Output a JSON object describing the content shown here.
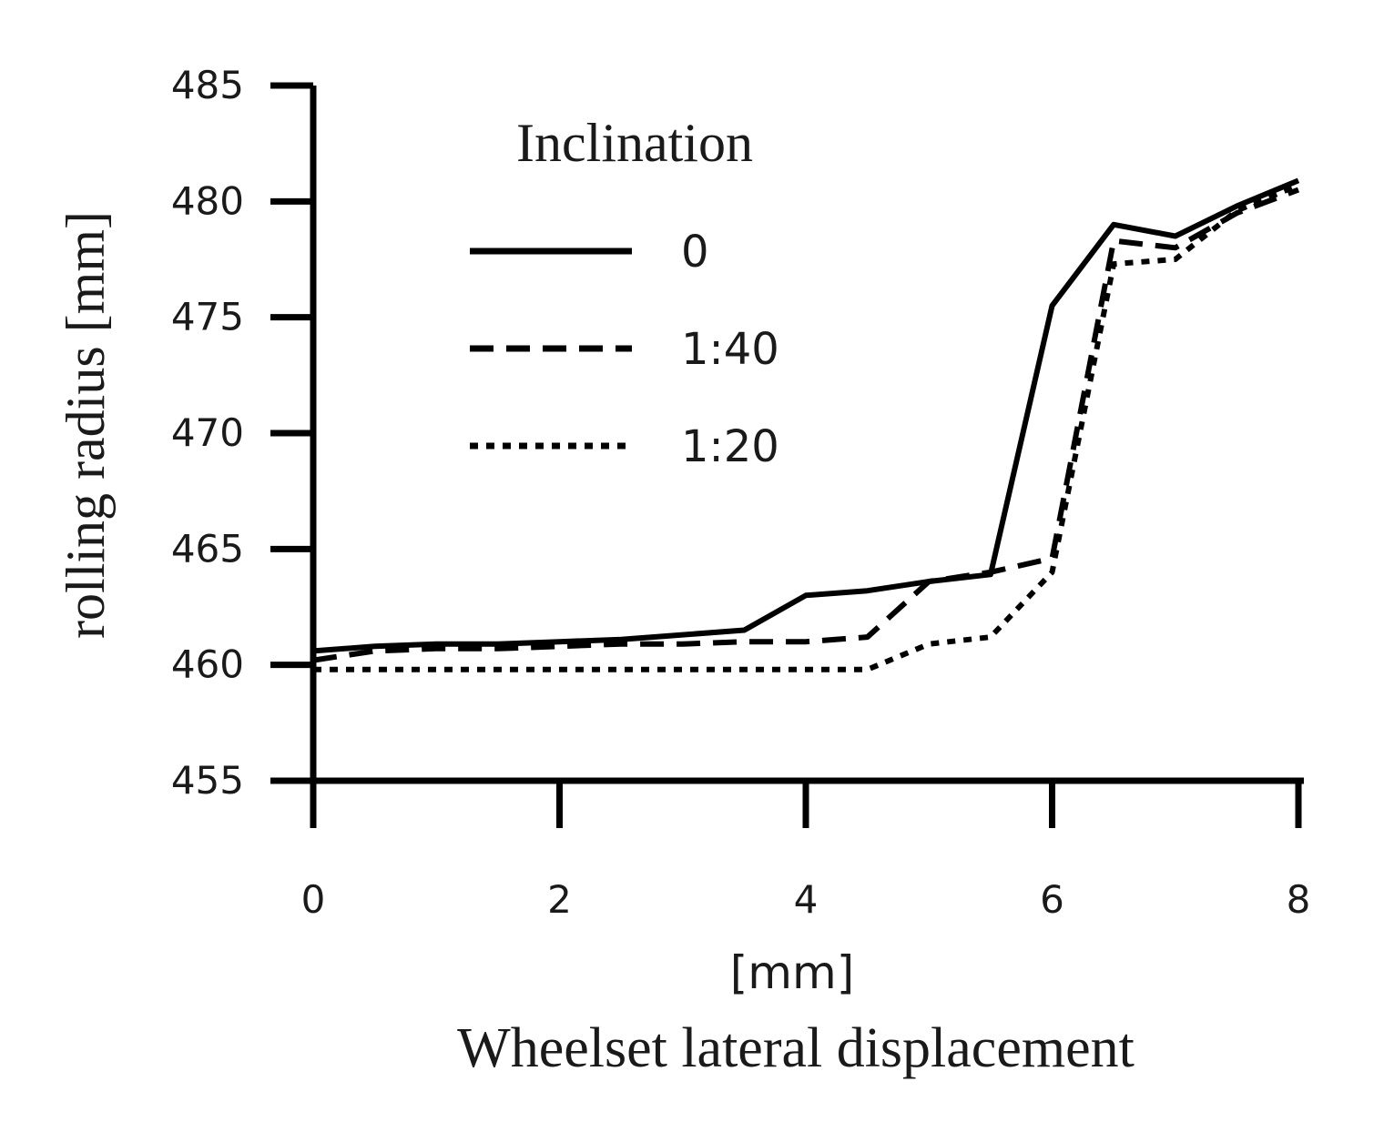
{
  "chart_data": {
    "type": "line",
    "title": "",
    "xlabel_unit": "[mm]",
    "xlabel": "Wheelset lateral displacement",
    "ylabel": "rolling radius [mm]",
    "xlim": [
      0,
      8
    ],
    "ylim": [
      455,
      485
    ],
    "x_ticks": [
      0,
      2,
      4,
      6,
      8
    ],
    "y_ticks": [
      455,
      460,
      465,
      470,
      475,
      480,
      485
    ],
    "x_tick_labels": [
      "0",
      "2",
      "4",
      "6",
      "8"
    ],
    "y_tick_labels": [
      "455",
      "460",
      "465",
      "470",
      "475",
      "480",
      "485"
    ],
    "grid": false,
    "legend": {
      "title": "Inclination",
      "placement": "top-left",
      "entries": [
        "0",
        "1:40",
        "1:20"
      ]
    },
    "series": [
      {
        "name": "0",
        "style": "solid",
        "x": [
          0,
          0.5,
          1,
          1.5,
          2,
          2.5,
          3,
          3.5,
          4,
          4.5,
          5,
          5.5,
          6,
          6.5,
          7,
          7.5,
          8
        ],
        "y": [
          460.6,
          460.8,
          460.9,
          460.9,
          461.0,
          461.1,
          461.3,
          461.5,
          463.0,
          463.2,
          463.6,
          463.9,
          475.5,
          479.0,
          478.5,
          479.8,
          480.9
        ]
      },
      {
        "name": "1:40",
        "style": "dashed",
        "x": [
          0,
          0.5,
          1,
          1.5,
          2,
          2.5,
          3,
          3.5,
          4,
          4.5,
          5,
          5.5,
          6,
          6.5,
          7,
          7.5,
          8
        ],
        "y": [
          460.2,
          460.6,
          460.7,
          460.7,
          460.8,
          460.9,
          460.9,
          461.0,
          461.0,
          461.2,
          463.6,
          464.0,
          464.6,
          478.3,
          478.0,
          479.5,
          480.5
        ]
      },
      {
        "name": "1:20",
        "style": "dotted",
        "x": [
          0,
          0.5,
          1,
          1.5,
          2,
          2.5,
          3,
          3.5,
          4,
          4.5,
          5,
          5.5,
          6,
          6.5,
          7,
          7.5,
          8
        ],
        "y": [
          459.8,
          459.8,
          459.8,
          459.8,
          459.8,
          459.8,
          459.8,
          459.8,
          459.8,
          459.8,
          460.9,
          461.2,
          464.0,
          477.3,
          477.5,
          479.6,
          480.7
        ]
      }
    ]
  }
}
